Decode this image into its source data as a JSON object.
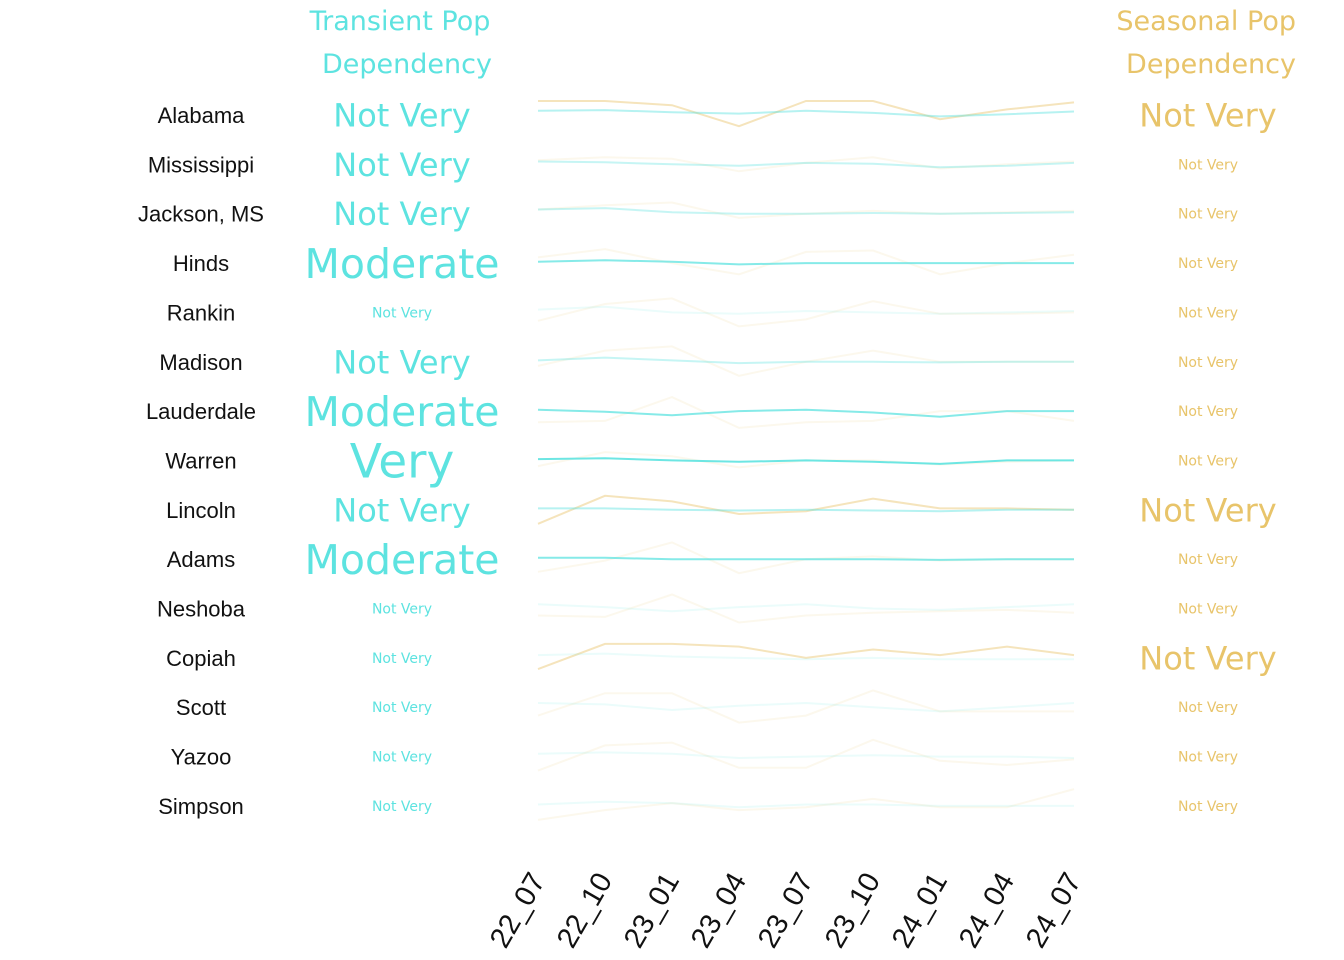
{
  "chart_data": {
    "type": "line",
    "headers": {
      "transient": [
        "Transient Pop",
        "Dependency"
      ],
      "seasonal": [
        "Seasonal Pop",
        "Dependency"
      ]
    },
    "x": [
      "22_07",
      "22_10",
      "23_01",
      "23_04",
      "23_07",
      "23_10",
      "24_01",
      "24_04",
      "24_07"
    ],
    "colors": {
      "transient": "#5de3e0",
      "seasonal": "#e8c46a"
    },
    "rows": [
      {
        "name": "Alabama",
        "transient_level": "Not Very",
        "transient_size": "medium",
        "transient_alpha": 0.45,
        "seasonal_level": "Not Very",
        "seasonal_size": "medium",
        "seasonal_alpha": 0.45,
        "transient": [
          0.3,
          0.35,
          0.2,
          0.1,
          0.3,
          0.15,
          -0.1,
          0.05,
          0.25
        ],
        "seasonal": [
          1.0,
          1.0,
          0.7,
          -0.8,
          1.0,
          1.0,
          -0.3,
          0.4,
          0.9
        ]
      },
      {
        "name": "Mississippi",
        "transient_level": "Not Very",
        "transient_size": "medium",
        "transient_alpha": 0.35,
        "seasonal_level": "Not Very",
        "seasonal_size": "small",
        "seasonal_alpha": 0.12,
        "transient": [
          0.2,
          0.15,
          0.0,
          -0.1,
          0.1,
          0.05,
          -0.2,
          -0.1,
          0.1
        ],
        "seasonal": [
          0.3,
          0.5,
          0.4,
          -0.5,
          0.1,
          0.5,
          -0.3,
          0.0,
          0.2
        ]
      },
      {
        "name": "Jackson, MS",
        "transient_level": "Not Very",
        "transient_size": "medium",
        "transient_alpha": 0.35,
        "seasonal_level": "Not Very",
        "seasonal_size": "small",
        "seasonal_alpha": 0.12,
        "transient": [
          0.3,
          0.4,
          0.1,
          0.0,
          0.0,
          0.05,
          0.0,
          0.05,
          0.1
        ],
        "seasonal": [
          0.3,
          0.6,
          0.8,
          -0.3,
          0.0,
          0.2,
          0.0,
          0.1,
          0.2
        ]
      },
      {
        "name": "Hinds",
        "transient_level": "Moderate",
        "transient_size": "large",
        "transient_alpha": 0.75,
        "seasonal_level": "Not Very",
        "seasonal_size": "small",
        "seasonal_alpha": 0.12,
        "transient": [
          0.1,
          0.2,
          0.1,
          -0.1,
          0.0,
          0.0,
          0.0,
          0.0,
          0.0
        ],
        "seasonal": [
          0.4,
          1.0,
          0.0,
          -0.8,
          0.8,
          0.9,
          -0.8,
          0.0,
          0.6
        ]
      },
      {
        "name": "Rankin",
        "transient_level": "Not Very",
        "transient_size": "small",
        "transient_alpha": 0.12,
        "seasonal_level": "Not Very",
        "seasonal_size": "small",
        "seasonal_alpha": 0.12,
        "transient": [
          0.2,
          0.4,
          0.0,
          -0.1,
          0.1,
          0.0,
          -0.1,
          0.0,
          0.1
        ],
        "seasonal": [
          -0.6,
          0.6,
          1.0,
          -1.0,
          -0.5,
          0.8,
          -0.1,
          -0.1,
          0.0
        ]
      },
      {
        "name": "Madison",
        "transient_level": "Not Very",
        "transient_size": "medium",
        "transient_alpha": 0.35,
        "seasonal_level": "Not Very",
        "seasonal_size": "small",
        "seasonal_alpha": 0.12,
        "transient": [
          0.1,
          0.3,
          0.1,
          -0.1,
          0.0,
          0.0,
          -0.05,
          0.0,
          0.0
        ],
        "seasonal": [
          -0.3,
          0.8,
          1.1,
          -1.0,
          0.0,
          0.8,
          0.0,
          0.0,
          0.0
        ]
      },
      {
        "name": "Lauderdale",
        "transient_level": "Moderate",
        "transient_size": "large",
        "transient_alpha": 0.75,
        "seasonal_level": "Not Very",
        "seasonal_size": "small",
        "seasonal_alpha": 0.12,
        "transient": [
          0.1,
          -0.05,
          -0.3,
          0.0,
          0.1,
          -0.1,
          -0.4,
          0.0,
          0.0
        ],
        "seasonal": [
          -0.8,
          -0.7,
          1.0,
          -1.2,
          -0.8,
          -0.7,
          0.0,
          0.0,
          -0.7
        ]
      },
      {
        "name": "Warren",
        "transient_level": "Very",
        "transient_size": "xlarge",
        "transient_alpha": 0.9,
        "seasonal_level": "Not Very",
        "seasonal_size": "small",
        "seasonal_alpha": 0.12,
        "transient": [
          0.1,
          0.15,
          0.0,
          -0.1,
          0.0,
          -0.1,
          -0.25,
          0.0,
          0.0
        ],
        "seasonal": [
          -0.4,
          0.6,
          0.3,
          -0.5,
          0.0,
          0.0,
          -0.3,
          -0.1,
          0.0
        ]
      },
      {
        "name": "Lincoln",
        "transient_level": "Not Very",
        "transient_size": "medium",
        "transient_alpha": 0.45,
        "seasonal_level": "Not Very",
        "seasonal_size": "medium",
        "seasonal_alpha": 0.45,
        "transient": [
          0.1,
          0.1,
          0.0,
          -0.05,
          0.0,
          -0.05,
          -0.1,
          0.0,
          0.0
        ],
        "seasonal": [
          -1.0,
          1.0,
          0.6,
          -0.3,
          -0.1,
          0.8,
          0.1,
          0.1,
          0.0
        ]
      },
      {
        "name": "Adams",
        "transient_level": "Moderate",
        "transient_size": "large",
        "transient_alpha": 0.75,
        "seasonal_level": "Not Very",
        "seasonal_size": "small",
        "seasonal_alpha": 0.12,
        "transient": [
          0.1,
          0.1,
          0.0,
          0.0,
          0.0,
          0.0,
          -0.05,
          0.0,
          0.0
        ],
        "seasonal": [
          -0.9,
          -0.1,
          1.2,
          -1.0,
          0.0,
          0.2,
          -0.1,
          0.0,
          0.0
        ]
      },
      {
        "name": "Neshoba",
        "transient_level": "Not Very",
        "transient_size": "small",
        "transient_alpha": 0.12,
        "seasonal_level": "Not Very",
        "seasonal_size": "small",
        "seasonal_alpha": 0.12,
        "transient": [
          0.3,
          0.1,
          -0.2,
          0.1,
          0.3,
          0.0,
          -0.1,
          0.1,
          0.3
        ],
        "seasonal": [
          -0.5,
          -0.6,
          1.0,
          -1.0,
          -0.5,
          -0.3,
          -0.2,
          -0.1,
          -0.3
        ]
      },
      {
        "name": "Copiah",
        "transient_level": "Not Very",
        "transient_size": "small",
        "transient_alpha": 0.12,
        "seasonal_level": "Not Very",
        "seasonal_size": "medium",
        "seasonal_alpha": 0.45,
        "transient": [
          0.2,
          0.3,
          0.1,
          0.0,
          -0.1,
          0.0,
          -0.1,
          -0.1,
          -0.1
        ],
        "seasonal": [
          -0.8,
          1.0,
          1.0,
          0.8,
          0.0,
          0.6,
          0.2,
          0.8,
          0.2
        ]
      },
      {
        "name": "Scott",
        "transient_level": "Not Very",
        "transient_size": "small",
        "transient_alpha": 0.12,
        "seasonal_level": "Not Very",
        "seasonal_size": "small",
        "seasonal_alpha": 0.12,
        "transient": [
          0.3,
          0.2,
          -0.2,
          0.1,
          0.3,
          0.0,
          -0.3,
          0.0,
          0.3
        ],
        "seasonal": [
          -0.6,
          1.0,
          1.0,
          -1.1,
          -0.6,
          1.2,
          -0.3,
          -0.3,
          -0.3
        ]
      },
      {
        "name": "Yazoo",
        "transient_level": "Not Very",
        "transient_size": "small",
        "transient_alpha": 0.12,
        "seasonal_level": "Not Very",
        "seasonal_size": "small",
        "seasonal_alpha": 0.12,
        "transient": [
          0.2,
          0.3,
          0.2,
          -0.1,
          0.0,
          0.1,
          0.0,
          0.0,
          -0.1
        ],
        "seasonal": [
          -1.0,
          0.8,
          1.0,
          -0.8,
          -0.8,
          1.2,
          -0.3,
          -0.6,
          -0.2
        ]
      },
      {
        "name": "Simpson",
        "transient_level": "Not Very",
        "transient_size": "small",
        "transient_alpha": 0.12,
        "seasonal_level": "Not Very",
        "seasonal_size": "small",
        "seasonal_alpha": 0.12,
        "transient": [
          0.1,
          0.3,
          0.2,
          -0.1,
          0.1,
          0.1,
          0.0,
          0.0,
          0.0
        ],
        "seasonal": [
          -1.0,
          -0.3,
          0.2,
          -0.3,
          -0.1,
          0.5,
          -0.1,
          -0.1,
          1.2
        ]
      }
    ]
  }
}
